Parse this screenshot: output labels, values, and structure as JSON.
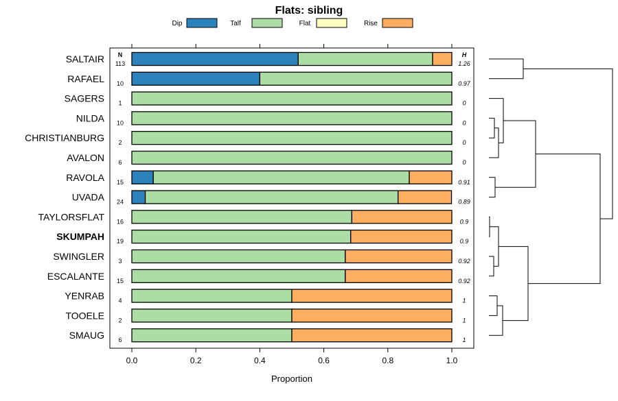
{
  "chart_data": {
    "type": "bar",
    "orientation": "horizontal",
    "stacked": true,
    "title": "Flats: sibling",
    "xlabel": "Proportion",
    "xlim": [
      0,
      1
    ],
    "xticks": [
      "0.0",
      "0.2",
      "0.4",
      "0.6",
      "0.8",
      "1.0"
    ],
    "n_header": "N",
    "h_header": "H",
    "legend": [
      {
        "name": "Dip",
        "color": "#2c83bc"
      },
      {
        "name": "Talf",
        "color": "#abdda4"
      },
      {
        "name": "Flat",
        "color": "#ffffbf"
      },
      {
        "name": "Rise",
        "color": "#fdae61"
      }
    ],
    "categories": [
      "SALTAIR",
      "RAFAEL",
      "SAGERS",
      "NILDA",
      "CHRISTIANBURG",
      "AVALON",
      "RAVOLA",
      "UVADA",
      "TAYLORSFLAT",
      "SKUMPAH",
      "SWINGLER",
      "ESCALANTE",
      "YENRAB",
      "TOOELE",
      "SMAUG"
    ],
    "highlight": "SKUMPAH",
    "n": [
      "113",
      "10",
      "1",
      "10",
      "2",
      "6",
      "15",
      "24",
      "16",
      "19",
      "3",
      "15",
      "4",
      "2",
      "6"
    ],
    "h": [
      "1.26",
      "0.97",
      "0",
      "0",
      "0",
      "0",
      "0.91",
      "0.89",
      "0.9",
      "0.9",
      "0.92",
      "0.92",
      "1",
      "1",
      "1"
    ],
    "series": [
      {
        "name": "Dip",
        "values": [
          0.52,
          0.4,
          0,
          0,
          0,
          0,
          0.067,
          0.042,
          0,
          0,
          0,
          0,
          0,
          0,
          0
        ]
      },
      {
        "name": "Talf",
        "values": [
          0.42,
          0.6,
          1,
          1,
          1,
          1,
          0.8,
          0.79,
          0.6875,
          0.684,
          0.667,
          0.667,
          0.5,
          0.5,
          0.5
        ]
      },
      {
        "name": "Flat",
        "values": [
          0,
          0,
          0,
          0,
          0,
          0,
          0,
          0,
          0,
          0,
          0,
          0,
          0,
          0,
          0
        ]
      },
      {
        "name": "Rise",
        "values": [
          0.06,
          0,
          0,
          0,
          0,
          0,
          0.133,
          0.167,
          0.3125,
          0.316,
          0.333,
          0.333,
          0.5,
          0.5,
          0.5
        ]
      }
    ]
  }
}
